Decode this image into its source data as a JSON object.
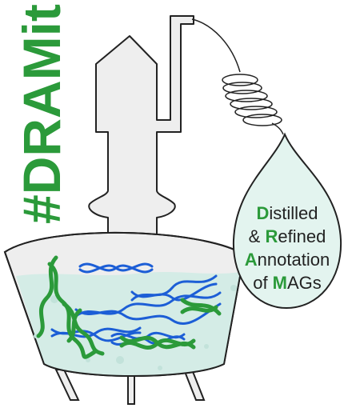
{
  "hashtag": "#DRAMit",
  "tagline": [
    {
      "bold": "D",
      "rest": "istilled"
    },
    {
      "pre": "& ",
      "bold": "R",
      "rest": "efined"
    },
    {
      "bold": "A",
      "rest": "nnotation"
    },
    {
      "pre": "of ",
      "bold": "M",
      "rest": "AGs"
    }
  ],
  "colors": {
    "green": "#2b9a3a",
    "blue": "#1c5ed6",
    "liquid": "#d4ece6",
    "still_fill": "#eeeeee",
    "outline": "#222222",
    "drop_fill": "#e3f4ef"
  }
}
